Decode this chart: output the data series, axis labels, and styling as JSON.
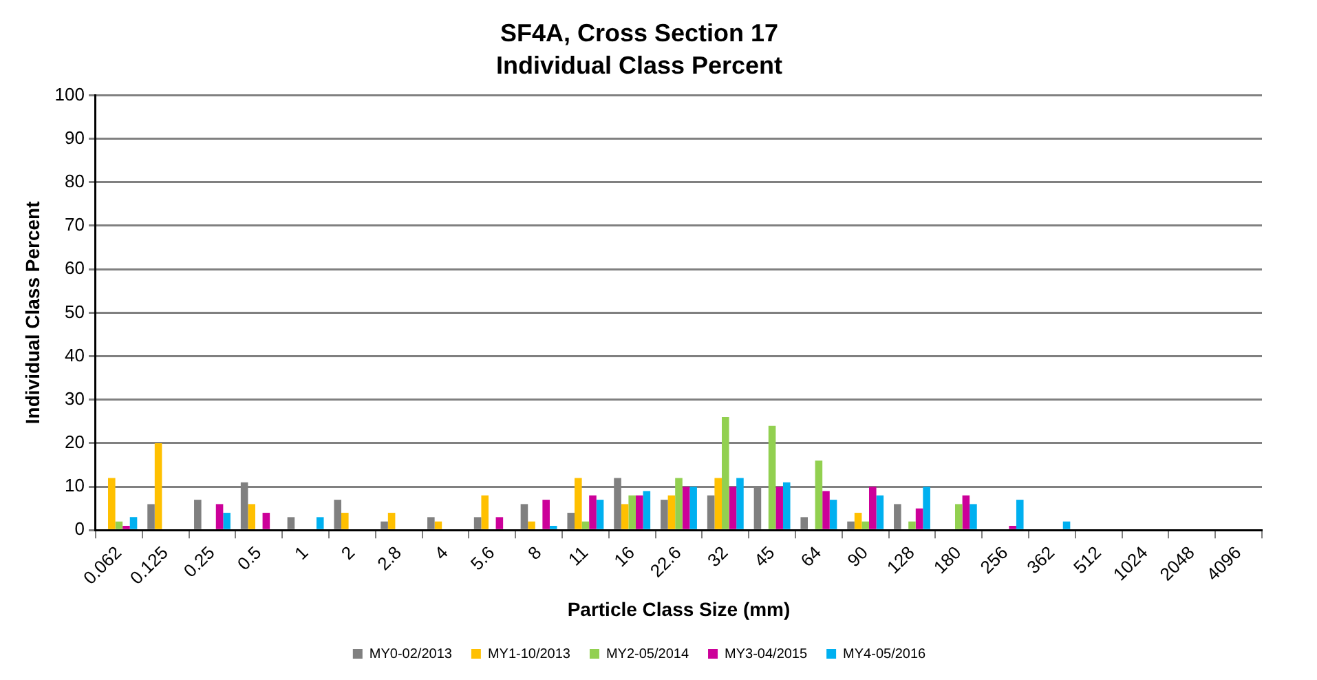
{
  "chart_data": {
    "type": "bar",
    "title": "SF4A, Cross Section 17",
    "subtitle": "Individual Class Percent",
    "xlabel": "Particle Class Size (mm)",
    "ylabel": "Individual Class Percent",
    "categories": [
      "0.062",
      "0.125",
      "0.25",
      "0.5",
      "1",
      "2",
      "2.8",
      "4",
      "5.6",
      "8",
      "11",
      "16",
      "22.6",
      "32",
      "45",
      "64",
      "90",
      "128",
      "180",
      "256",
      "362",
      "512",
      "1024",
      "2048",
      "4096"
    ],
    "series": [
      {
        "name": "MY0-02/2013",
        "color": "#808080",
        "values": [
          0,
          6,
          7,
          11,
          3,
          7,
          2,
          3,
          3,
          6,
          4,
          12,
          7,
          8,
          10,
          3,
          2,
          6,
          0,
          0,
          0,
          0,
          0,
          0,
          0
        ]
      },
      {
        "name": "MY1-10/2013",
        "color": "#ffc000",
        "values": [
          12,
          20,
          0,
          6,
          0,
          4,
          4,
          2,
          8,
          2,
          12,
          6,
          8,
          12,
          0,
          0,
          4,
          0,
          0,
          0,
          0,
          0,
          0,
          0,
          0
        ]
      },
      {
        "name": "MY2-05/2014",
        "color": "#92d050",
        "values": [
          2,
          0,
          0,
          0,
          0,
          0,
          0,
          0,
          0,
          0,
          2,
          8,
          12,
          26,
          24,
          16,
          2,
          2,
          6,
          0,
          0,
          0,
          0,
          0,
          0
        ]
      },
      {
        "name": "MY3-04/2015",
        "color": "#cc0099",
        "values": [
          1,
          0,
          6,
          4,
          0,
          0,
          0,
          0,
          3,
          7,
          8,
          8,
          10,
          10,
          10,
          9,
          10,
          5,
          8,
          1,
          0,
          0,
          0,
          0,
          0
        ]
      },
      {
        "name": "MY4-05/2016",
        "color": "#00b0f0",
        "values": [
          3,
          0,
          4,
          0,
          3,
          0,
          0,
          0,
          0,
          1,
          7,
          9,
          10,
          12,
          11,
          7,
          8,
          10,
          6,
          7,
          2,
          0,
          0,
          0,
          0
        ]
      }
    ],
    "ylim": [
      0,
      100
    ],
    "yticks": [
      0,
      10,
      20,
      30,
      40,
      50,
      60,
      70,
      80,
      90,
      100
    ],
    "grid": "y",
    "legend": "bottom"
  }
}
